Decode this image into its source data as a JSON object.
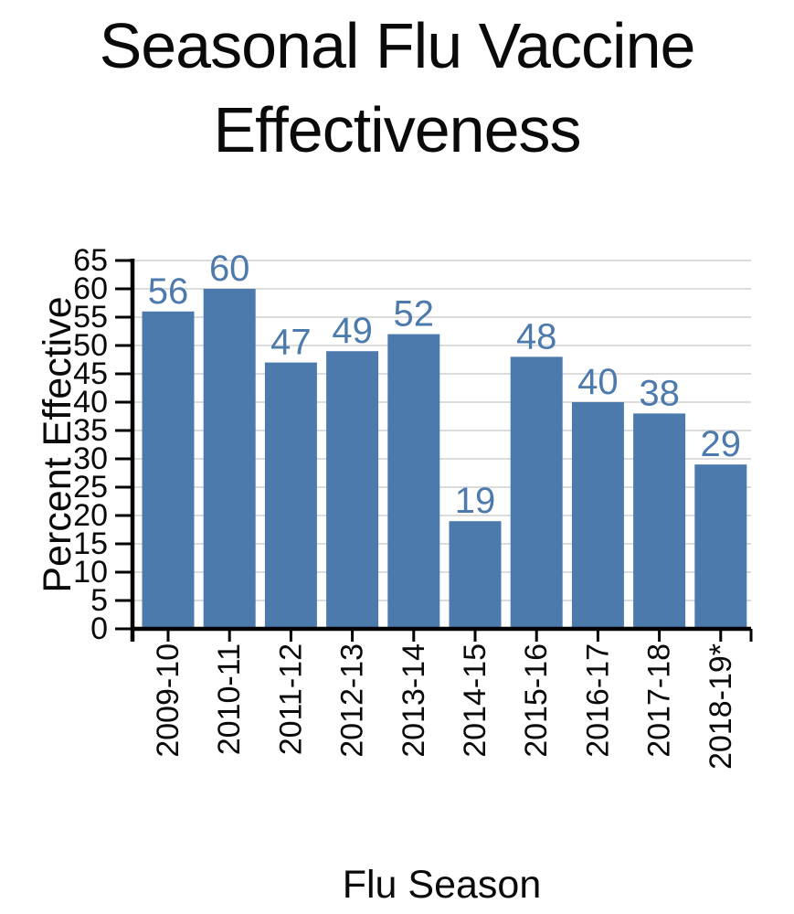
{
  "title": {
    "line1": "Seasonal Flu Vaccine",
    "line2": "Effectiveness"
  },
  "chart_data": {
    "type": "bar",
    "title": "Seasonal Flu Vaccine Effectiveness",
    "categories": [
      "2009-10",
      "2010-11",
      "2011-12",
      "2012-13",
      "2013-14",
      "2014-15",
      "2015-16",
      "2016-17",
      "2017-18",
      "2018-19*"
    ],
    "values": [
      56,
      60,
      47,
      49,
      52,
      19,
      48,
      40,
      38,
      29
    ],
    "xlabel": "Flu Season",
    "ylabel": "Percent Effective",
    "ylim": [
      0,
      65
    ],
    "ytick_step": 5,
    "grid": true,
    "legend": "none",
    "value_labels_shown": true,
    "colors": {
      "bar": "#4d7aad",
      "value_label": "#4d7aad",
      "axis": "#000000",
      "gridline": "#dcdcdc",
      "tick_label": "#0a0a0a",
      "background": "#ffffff"
    }
  }
}
